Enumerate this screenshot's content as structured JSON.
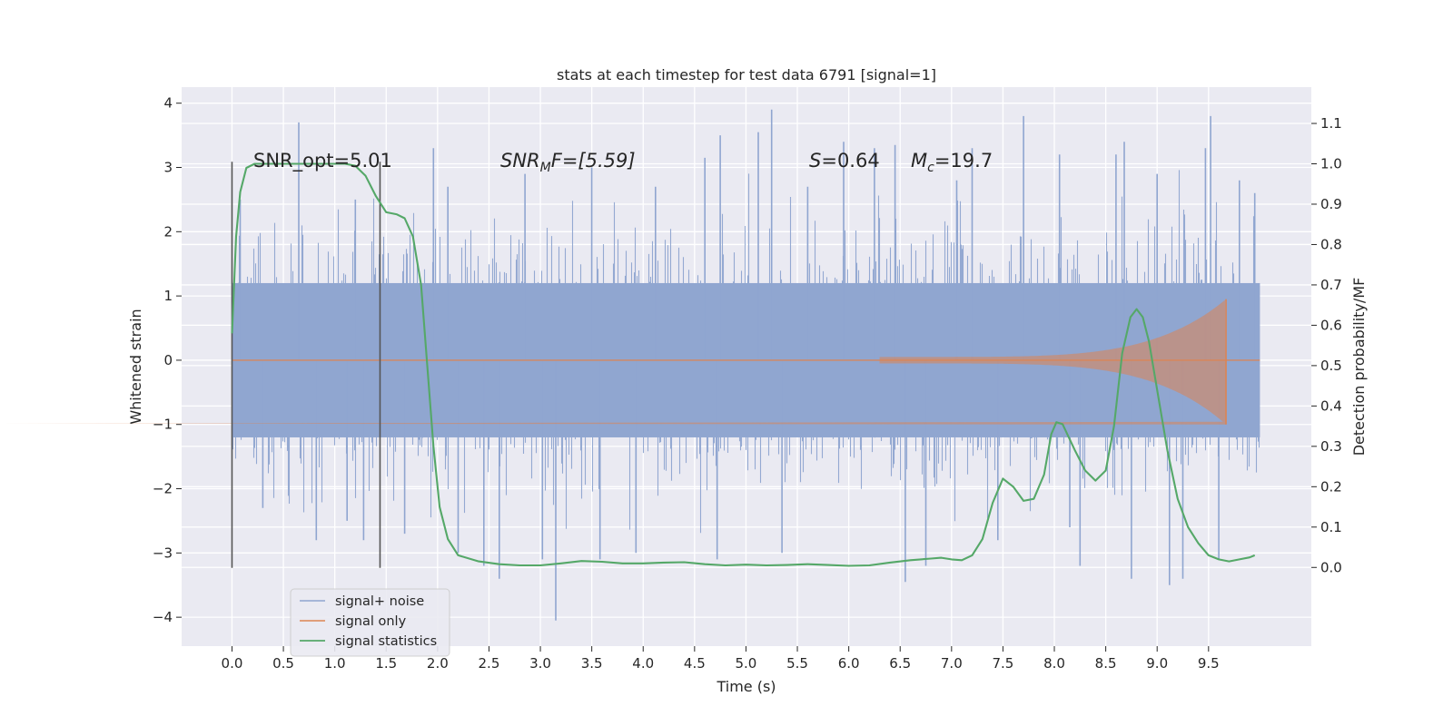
{
  "chart_data": {
    "type": "line",
    "title": "stats at each timestep for test data 6791 [signal=1]",
    "xlabel": "Time (s)",
    "ylabel": "Whitened strain",
    "y2label": "Detection probability/MF",
    "xlim": [
      -0.49,
      10.5
    ],
    "ylim": [
      -4.45,
      4.25
    ],
    "y2lim": [
      -0.195,
      1.19
    ],
    "x_ticks": [
      "0.0",
      "0.5",
      "1.0",
      "1.5",
      "2.0",
      "2.5",
      "3.0",
      "3.5",
      "4.0",
      "4.5",
      "5.0",
      "5.5",
      "6.0",
      "6.5",
      "7.0",
      "7.5",
      "8.0",
      "8.5",
      "9.0",
      "9.5"
    ],
    "y_ticks": [
      "4",
      "3",
      "2",
      "1",
      "0",
      "−1",
      "−2",
      "−3",
      "−4"
    ],
    "y2_ticks": [
      "1.1",
      "1.0",
      "0.9",
      "0.8",
      "0.7",
      "0.6",
      "0.5",
      "0.4",
      "0.3",
      "0.2",
      "0.1",
      "0.0"
    ],
    "grid": true,
    "legend_position": "lower-left",
    "annotations": {
      "snr_opt": "SNR_opt=5.01",
      "snr_mf_main": "SNR",
      "snr_mf_sub": "M",
      "snr_mf_rest": "F=[5.59]",
      "s_main": "S",
      "s_rest": "=0.64",
      "mc_main": "M",
      "mc_sub": "c",
      "mc_rest": "=19.7"
    },
    "window_markers_x": [
      0.0,
      1.44
    ],
    "series": [
      {
        "name": "signal+ noise",
        "color": "#8fa5d0",
        "x_range": [
          0.0,
          10.0
        ],
        "band_core": [
          -1.2,
          1.2
        ],
        "band_typical": [
          -2.1,
          2.1
        ],
        "peaks": [
          [
            0.08,
            2.5
          ],
          [
            0.3,
            -2.3
          ],
          [
            0.65,
            3.7
          ],
          [
            0.82,
            -2.8
          ],
          [
            1.12,
            -2.5
          ],
          [
            1.2,
            2.5
          ],
          [
            1.28,
            -2.8
          ],
          [
            1.68,
            -2.7
          ],
          [
            1.96,
            3.3
          ],
          [
            2.1,
            2.7
          ],
          [
            2.2,
            -3.0
          ],
          [
            2.45,
            -3.2
          ],
          [
            2.6,
            -3.4
          ],
          [
            2.85,
            2.9
          ],
          [
            3.02,
            -3.1
          ],
          [
            3.15,
            -4.05
          ],
          [
            3.5,
            3.0
          ],
          [
            3.58,
            -3.1
          ],
          [
            3.93,
            -3.0
          ],
          [
            4.12,
            2.7
          ],
          [
            4.6,
            3.15
          ],
          [
            4.72,
            -3.1
          ],
          [
            4.75,
            3.5
          ],
          [
            5.12,
            3.55
          ],
          [
            5.25,
            3.9
          ],
          [
            5.35,
            -3.0
          ],
          [
            5.6,
            2.7
          ],
          [
            5.95,
            3.4
          ],
          [
            6.25,
            3.3
          ],
          [
            6.45,
            3.35
          ],
          [
            6.55,
            -3.45
          ],
          [
            6.75,
            -3.2
          ],
          [
            7.05,
            2.8
          ],
          [
            7.2,
            3.3
          ],
          [
            7.45,
            -2.8
          ],
          [
            7.7,
            3.8
          ],
          [
            8.05,
            3.2
          ],
          [
            8.15,
            -2.6
          ],
          [
            8.25,
            -3.2
          ],
          [
            8.6,
            3.2
          ],
          [
            8.68,
            3.4
          ],
          [
            8.75,
            -3.4
          ],
          [
            9.0,
            2.9
          ],
          [
            9.12,
            -3.5
          ],
          [
            9.25,
            -3.4
          ],
          [
            9.47,
            3.3
          ],
          [
            9.52,
            3.8
          ],
          [
            9.6,
            -3.1
          ],
          [
            9.8,
            2.8
          ],
          [
            9.95,
            2.6
          ]
        ]
      },
      {
        "name": "signal only",
        "color": "#dd8452",
        "x_range": [
          0.0,
          9.67
        ],
        "chirp_start_amplitude": 0.05,
        "chirp_peak": [
          9.67,
          0.95
        ],
        "chirp_trough": [
          9.67,
          -1.0
        ]
      },
      {
        "name": "signal statistics",
        "color": "#55a868",
        "axis": "right",
        "points": [
          [
            0.0,
            0.58
          ],
          [
            0.04,
            0.82
          ],
          [
            0.08,
            0.93
          ],
          [
            0.14,
            0.99
          ],
          [
            0.22,
            1.0
          ],
          [
            0.4,
            1.0
          ],
          [
            0.6,
            1.0
          ],
          [
            0.8,
            1.0
          ],
          [
            1.0,
            1.0
          ],
          [
            1.1,
            1.0
          ],
          [
            1.2,
            0.995
          ],
          [
            1.3,
            0.97
          ],
          [
            1.4,
            0.92
          ],
          [
            1.5,
            0.88
          ],
          [
            1.6,
            0.875
          ],
          [
            1.68,
            0.865
          ],
          [
            1.76,
            0.82
          ],
          [
            1.84,
            0.7
          ],
          [
            1.9,
            0.5
          ],
          [
            1.96,
            0.3
          ],
          [
            2.02,
            0.15
          ],
          [
            2.1,
            0.07
          ],
          [
            2.2,
            0.03
          ],
          [
            2.4,
            0.015
          ],
          [
            2.6,
            0.008
          ],
          [
            2.8,
            0.005
          ],
          [
            3.0,
            0.005
          ],
          [
            3.2,
            0.01
          ],
          [
            3.4,
            0.016
          ],
          [
            3.6,
            0.014
          ],
          [
            3.8,
            0.01
          ],
          [
            4.0,
            0.01
          ],
          [
            4.2,
            0.012
          ],
          [
            4.4,
            0.013
          ],
          [
            4.6,
            0.008
          ],
          [
            4.8,
            0.005
          ],
          [
            5.0,
            0.007
          ],
          [
            5.2,
            0.005
          ],
          [
            5.4,
            0.006
          ],
          [
            5.6,
            0.008
          ],
          [
            5.8,
            0.006
          ],
          [
            6.0,
            0.004
          ],
          [
            6.2,
            0.005
          ],
          [
            6.4,
            0.012
          ],
          [
            6.6,
            0.018
          ],
          [
            6.8,
            0.022
          ],
          [
            6.9,
            0.024
          ],
          [
            7.0,
            0.02
          ],
          [
            7.1,
            0.018
          ],
          [
            7.2,
            0.03
          ],
          [
            7.3,
            0.07
          ],
          [
            7.4,
            0.16
          ],
          [
            7.5,
            0.22
          ],
          [
            7.6,
            0.2
          ],
          [
            7.7,
            0.165
          ],
          [
            7.8,
            0.17
          ],
          [
            7.9,
            0.23
          ],
          [
            7.97,
            0.33
          ],
          [
            8.02,
            0.36
          ],
          [
            8.08,
            0.355
          ],
          [
            8.2,
            0.29
          ],
          [
            8.3,
            0.24
          ],
          [
            8.4,
            0.215
          ],
          [
            8.5,
            0.24
          ],
          [
            8.58,
            0.35
          ],
          [
            8.66,
            0.53
          ],
          [
            8.74,
            0.62
          ],
          [
            8.8,
            0.64
          ],
          [
            8.86,
            0.62
          ],
          [
            8.92,
            0.56
          ],
          [
            9.0,
            0.44
          ],
          [
            9.1,
            0.29
          ],
          [
            9.2,
            0.17
          ],
          [
            9.3,
            0.1
          ],
          [
            9.4,
            0.06
          ],
          [
            9.5,
            0.03
          ],
          [
            9.6,
            0.02
          ],
          [
            9.7,
            0.015
          ],
          [
            9.8,
            0.02
          ],
          [
            9.9,
            0.025
          ],
          [
            9.95,
            0.03
          ]
        ]
      }
    ]
  }
}
